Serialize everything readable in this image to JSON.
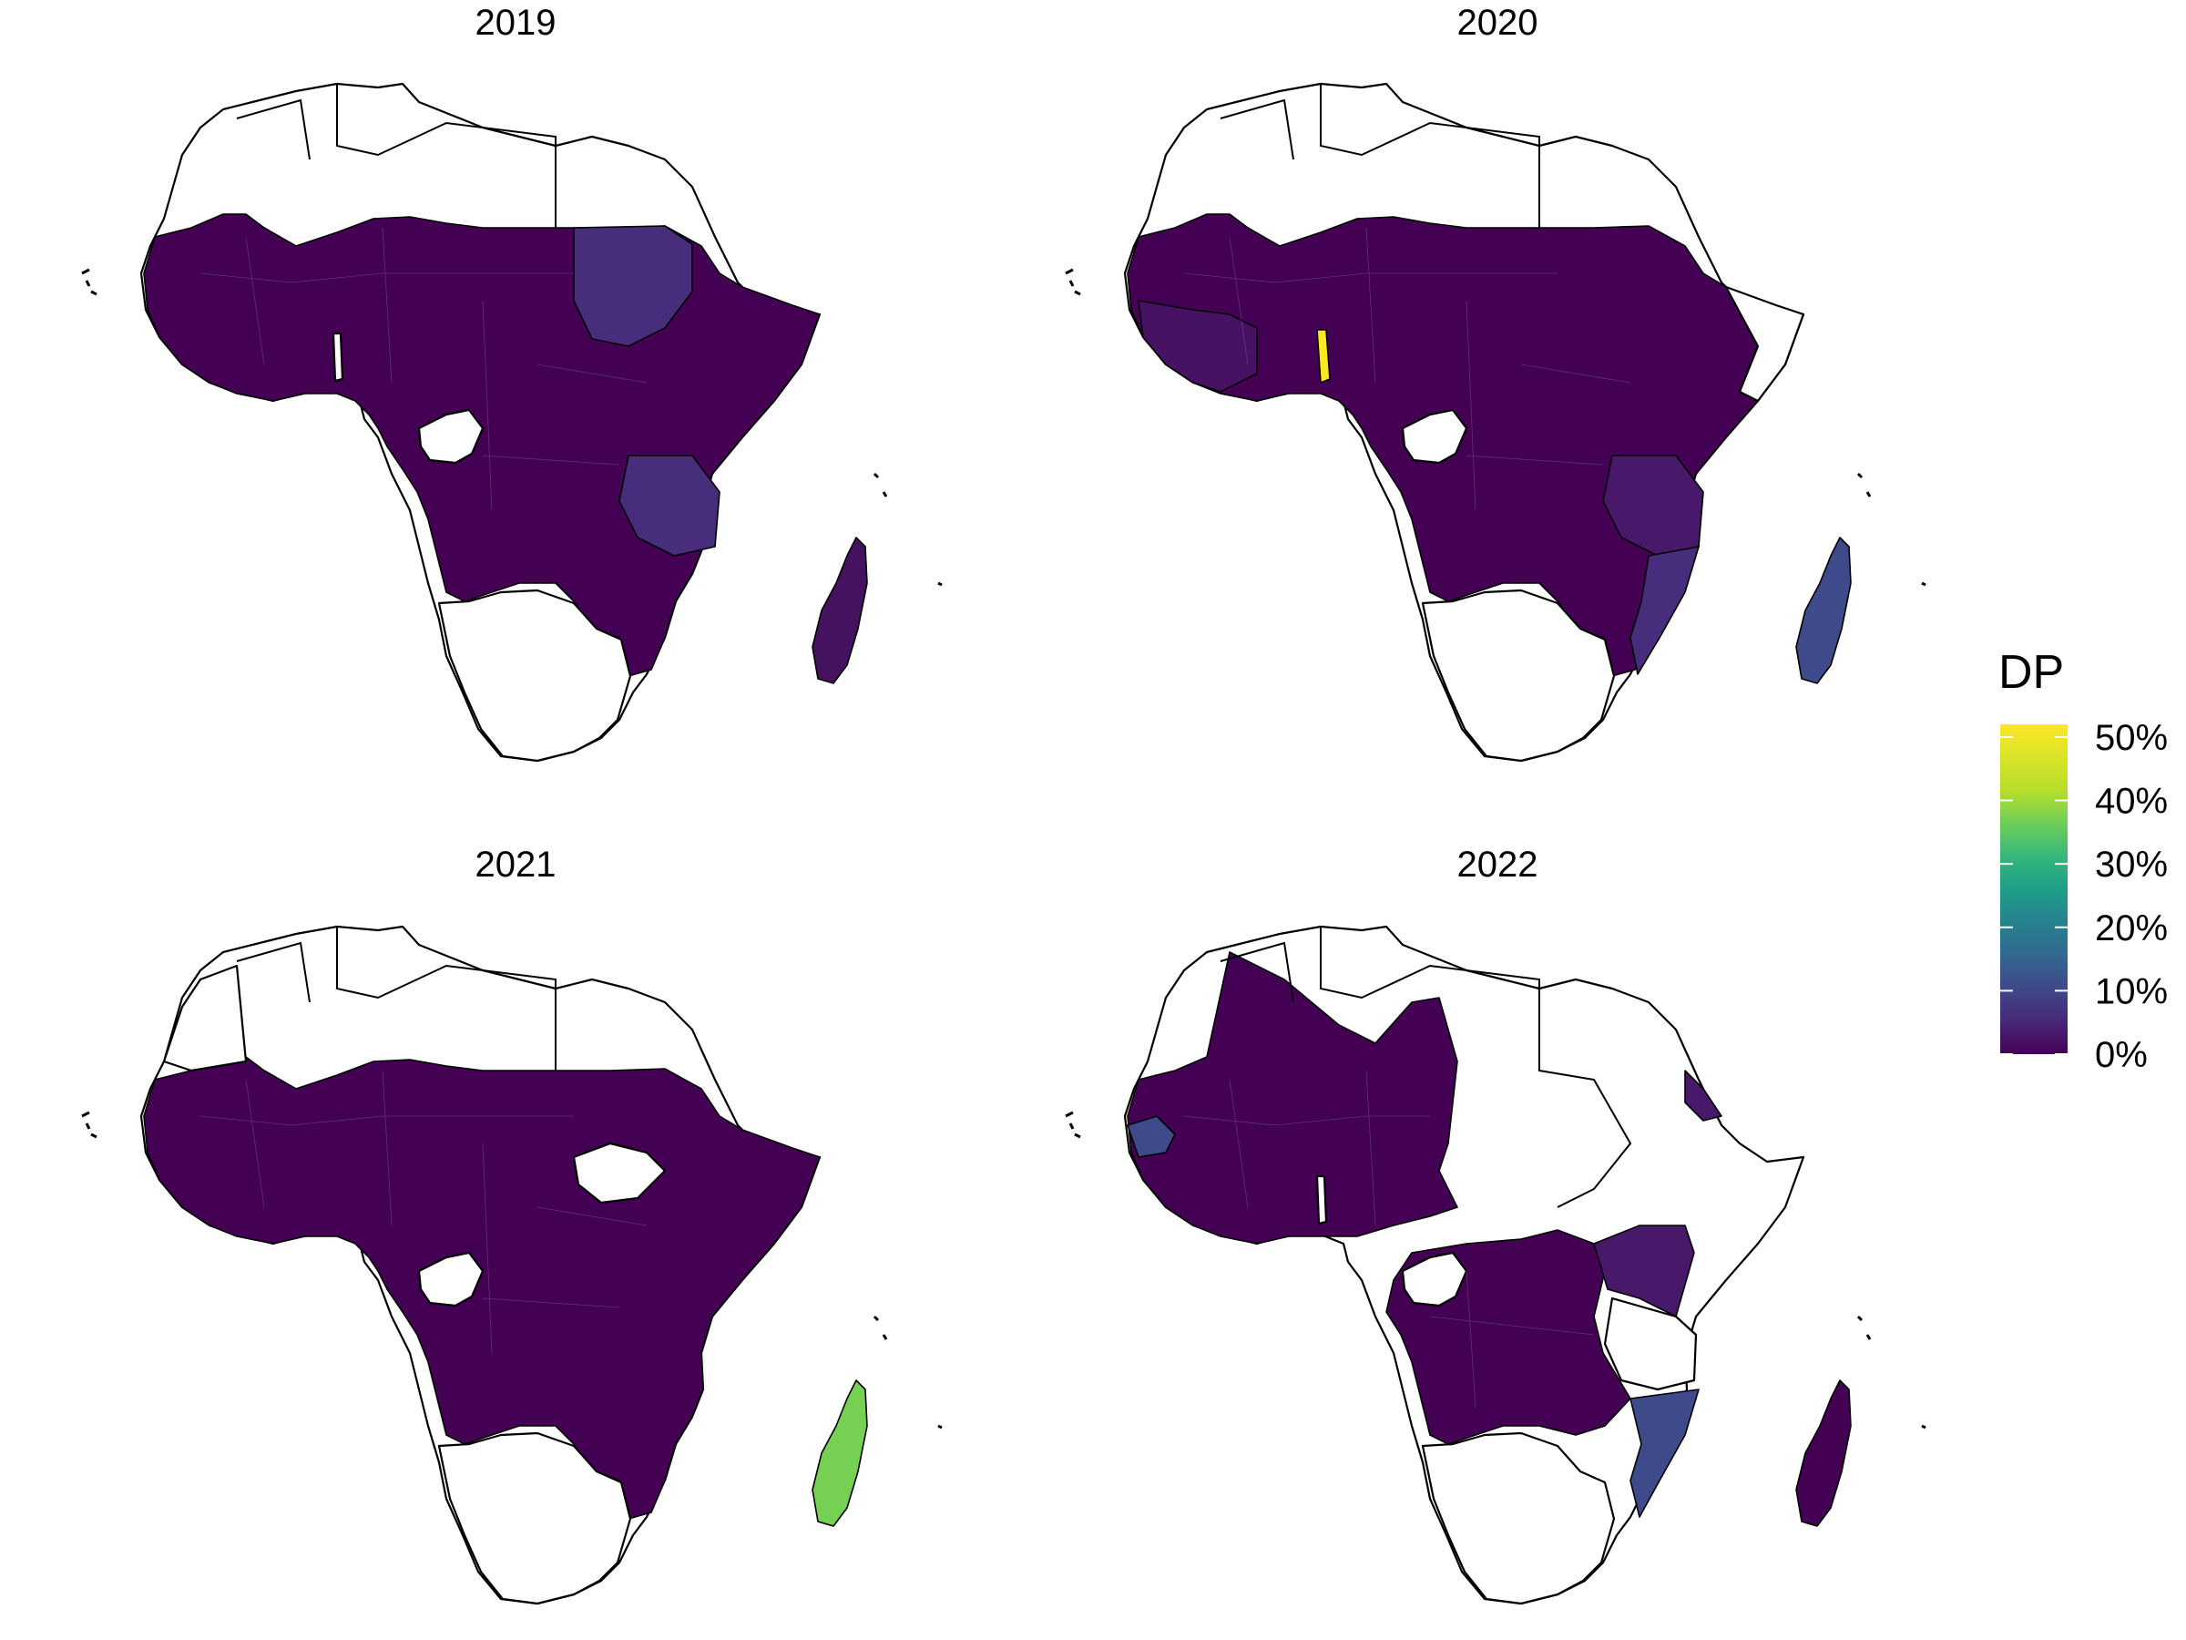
{
  "legend": {
    "title": "DP",
    "ticks": [
      "50%",
      "40%",
      "30%",
      "20%",
      "10%",
      "0%"
    ],
    "tick_values": [
      50,
      40,
      30,
      20,
      10,
      0
    ]
  },
  "colors": {
    "p0": "#440154",
    "p5": "#472d7b",
    "p12": "#3f4a8a",
    "p40": "#75d054",
    "p50": "#fde725",
    "unfilled": "#ffffff"
  },
  "chart_data": {
    "type": "heatmap",
    "title": "",
    "legend_title": "DP",
    "scale": "viridis",
    "range": [
      0,
      50
    ],
    "panels": [
      {
        "year": "2019",
        "shaded_regions": [
          {
            "region": "west-africa",
            "value": 1
          },
          {
            "region": "sahel",
            "value": 1
          },
          {
            "region": "sudan",
            "value": 4
          },
          {
            "region": "horn",
            "value": 1
          },
          {
            "region": "central-africa",
            "value": 1
          },
          {
            "region": "tanzania",
            "value": 5
          },
          {
            "region": "southern-band",
            "value": 1
          },
          {
            "region": "madagascar",
            "value": 2
          }
        ]
      },
      {
        "year": "2020",
        "shaded_regions": [
          {
            "region": "west-africa",
            "value": 2
          },
          {
            "region": "togo",
            "value": 50
          },
          {
            "region": "north-sahel",
            "value": 1
          },
          {
            "region": "sudan",
            "value": 1
          },
          {
            "region": "horn",
            "value": 1
          },
          {
            "region": "central-africa",
            "value": 1
          },
          {
            "region": "tanzania",
            "value": 3
          },
          {
            "region": "mozambique",
            "value": 4
          },
          {
            "region": "madagascar",
            "value": 11
          }
        ]
      },
      {
        "year": "2021",
        "shaded_regions": [
          {
            "region": "west-africa",
            "value": 1
          },
          {
            "region": "sahel",
            "value": 1
          },
          {
            "region": "sudan",
            "value": 1
          },
          {
            "region": "horn",
            "value": 1
          },
          {
            "region": "central-africa",
            "value": 1
          },
          {
            "region": "southern-band",
            "value": 1
          },
          {
            "region": "madagascar",
            "value": 40
          }
        ]
      },
      {
        "year": "2022",
        "shaded_regions": [
          {
            "region": "west-africa",
            "value": 1
          },
          {
            "region": "senegal",
            "value": 12
          },
          {
            "region": "sahel-west",
            "value": 1
          },
          {
            "region": "eritrea",
            "value": 3
          },
          {
            "region": "kenya-uganda",
            "value": 4
          },
          {
            "region": "central-africa",
            "value": 1
          },
          {
            "region": "mozambique",
            "value": 10
          },
          {
            "region": "madagascar",
            "value": 2
          }
        ]
      }
    ]
  }
}
